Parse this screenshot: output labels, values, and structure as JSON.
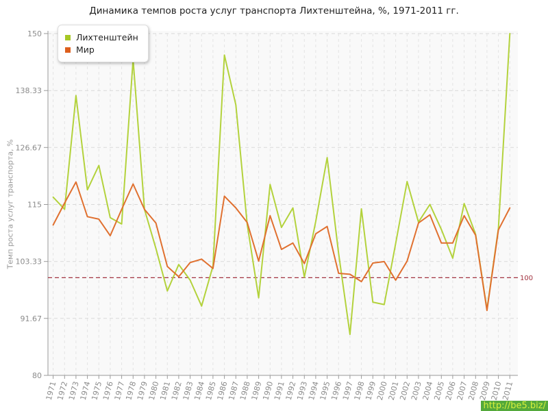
{
  "title": "Динамика темпов роста услуг транспорта Лихтенштейна, %, 1971-2011 гг.",
  "y_axis_title": "Темп роста услуг транспорта, %",
  "watermark": "http://be5.biz/",
  "baseline_label": "100",
  "legend": {
    "items": [
      {
        "label": "Лихтенштейн",
        "color": "#a6c825"
      },
      {
        "label": "Мир",
        "color": "#dd5f1d"
      }
    ]
  },
  "colors": {
    "series_liechtenstein": "#b3d23c",
    "series_world": "#e0702f",
    "baseline": "#a23340",
    "axis": "#999999",
    "grid_h": "#d9d9d9",
    "grid_v": "#e4e4e4",
    "tick_text": "#8b8b8b",
    "plot_bg": "#f9f9f9"
  },
  "chart_data": {
    "type": "line",
    "x": [
      1971,
      1972,
      1973,
      1974,
      1975,
      1976,
      1977,
      1978,
      1979,
      1980,
      1981,
      1982,
      1983,
      1984,
      1985,
      1986,
      1987,
      1988,
      1989,
      1990,
      1991,
      1992,
      1993,
      1994,
      1995,
      1996,
      1997,
      1998,
      1999,
      2000,
      2001,
      2002,
      2003,
      2004,
      2005,
      2006,
      2007,
      2008,
      2009,
      2010,
      2011
    ],
    "series": [
      {
        "name": "Лихтенштейн",
        "values": [
          116.5,
          114.0,
          137.3,
          118.0,
          123.0,
          112.3,
          111.0,
          144.7,
          114.0,
          106.0,
          97.3,
          102.7,
          99.5,
          94.2,
          102.4,
          145.6,
          135.4,
          110.9,
          95.9,
          119.1,
          110.3,
          114.3,
          100.1,
          111.5,
          124.6,
          105.0,
          88.4,
          114.1,
          95.0,
          94.5,
          107.0,
          119.7,
          111.4,
          115.0,
          109.9,
          104.0,
          115.2,
          108.9,
          93.5,
          110.1,
          150.0
        ]
      },
      {
        "name": "Мир",
        "values": [
          110.8,
          115.3,
          119.6,
          112.5,
          112.0,
          108.6,
          114.0,
          119.2,
          114.0,
          111.2,
          102.3,
          100.2,
          103.1,
          103.8,
          101.9,
          116.7,
          114.3,
          111.3,
          103.4,
          112.7,
          105.8,
          107.1,
          102.9,
          109.0,
          110.5,
          100.9,
          100.7,
          99.2,
          103.0,
          103.3,
          99.5,
          103.4,
          111.2,
          112.9,
          107.1,
          107.1,
          112.7,
          108.7,
          93.3,
          109.8,
          114.3
        ]
      }
    ],
    "title": "Динамика темпов роста услуг транспорта Лихтенштейна, %, 1971-2011 гг.",
    "xlabel": "",
    "ylabel": "Темп роста услуг транспорта, %",
    "ylim": [
      80,
      150
    ],
    "yticks": [
      "80",
      "91.67",
      "103.33",
      "115",
      "126.67",
      "138.33",
      "150"
    ],
    "baseline": 100,
    "grid": true,
    "legend_position": "top-left"
  }
}
